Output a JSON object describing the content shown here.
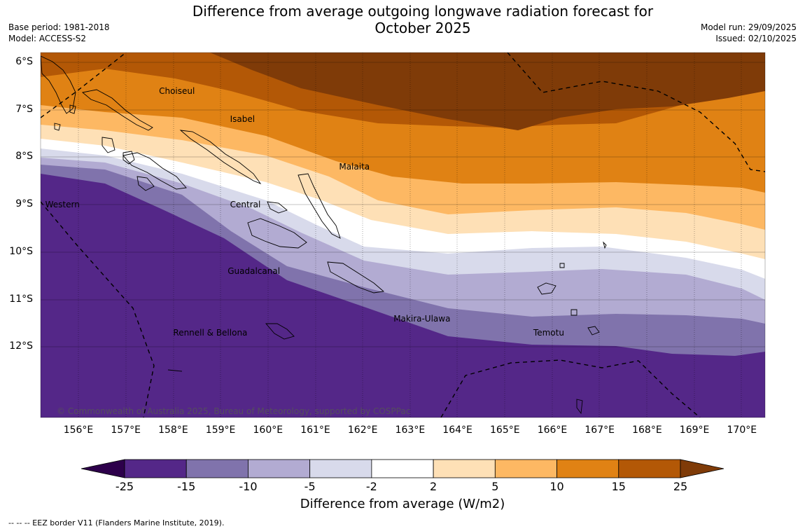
{
  "header": {
    "title_line1": "Difference from average outgoing longwave radiation forecast for",
    "title_line2": "October 2025",
    "base_period": "Base period: 1981-2018",
    "model": "Model: ACCESS-S2",
    "model_run": "Model run: 29/09/2025",
    "issued": "Issued: 02/10/2025"
  },
  "map": {
    "latitudes": [
      {
        "value": -6,
        "label": "6°S"
      },
      {
        "value": -7,
        "label": "7°S"
      },
      {
        "value": -8,
        "label": "8°S"
      },
      {
        "value": -9,
        "label": "9°S"
      },
      {
        "value": -10,
        "label": "10°S"
      },
      {
        "value": -11,
        "label": "11°S"
      },
      {
        "value": -12,
        "label": "12°S"
      }
    ],
    "longitudes": [
      {
        "value": 156,
        "label": "156°E"
      },
      {
        "value": 157,
        "label": "157°E"
      },
      {
        "value": 158,
        "label": "158°E"
      },
      {
        "value": 159,
        "label": "159°E"
      },
      {
        "value": 160,
        "label": "160°E"
      },
      {
        "value": 161,
        "label": "161°E"
      },
      {
        "value": 162,
        "label": "162°E"
      },
      {
        "value": 163,
        "label": "163°E"
      },
      {
        "value": 164,
        "label": "164°E"
      },
      {
        "value": 165,
        "label": "165°E"
      },
      {
        "value": 166,
        "label": "166°E"
      },
      {
        "value": 167,
        "label": "167°E"
      },
      {
        "value": 168,
        "label": "168°E"
      },
      {
        "value": 169,
        "label": "169°E"
      },
      {
        "value": 170,
        "label": "170°E"
      }
    ],
    "places": [
      {
        "name": "Choiseul",
        "lon": 157.7,
        "lat": -6.6
      },
      {
        "name": "Isabel",
        "lon": 159.2,
        "lat": -7.2
      },
      {
        "name": "Malaita",
        "lon": 161.5,
        "lat": -8.2
      },
      {
        "name": "Central",
        "lon": 159.2,
        "lat": -9.0
      },
      {
        "name": "Western",
        "lon": 155.3,
        "lat": -9.0
      },
      {
        "name": "Guadalcanal",
        "lon": 159.15,
        "lat": -10.4
      },
      {
        "name": "Makira-Ulawa",
        "lon": 162.65,
        "lat": -11.4
      },
      {
        "name": "Rennell & Bellona",
        "lon": 158.0,
        "lat": -11.7
      },
      {
        "name": "Temotu",
        "lon": 165.6,
        "lat": -11.7
      }
    ],
    "copyright": "© Commonwealth of Australia 2025, Bureau of Meteorology, supported by COSPPac"
  },
  "colorbar": {
    "ticks": [
      "-25",
      "-15",
      "-10",
      "-5",
      "-2",
      "2",
      "5",
      "10",
      "15",
      "25"
    ],
    "colors": [
      "#542788",
      "#8073ac",
      "#b2abd2",
      "#d8daeb",
      "#ffffff",
      "#fee0b6",
      "#fdb863",
      "#e08214",
      "#b35806"
    ],
    "under_color": "#2d004b",
    "over_color": "#7f3b08",
    "label": "Difference from average (W/m2)"
  },
  "footnote": "--  --  -- EEZ border V11 (Flanders Marine Institute, 2019)."
}
